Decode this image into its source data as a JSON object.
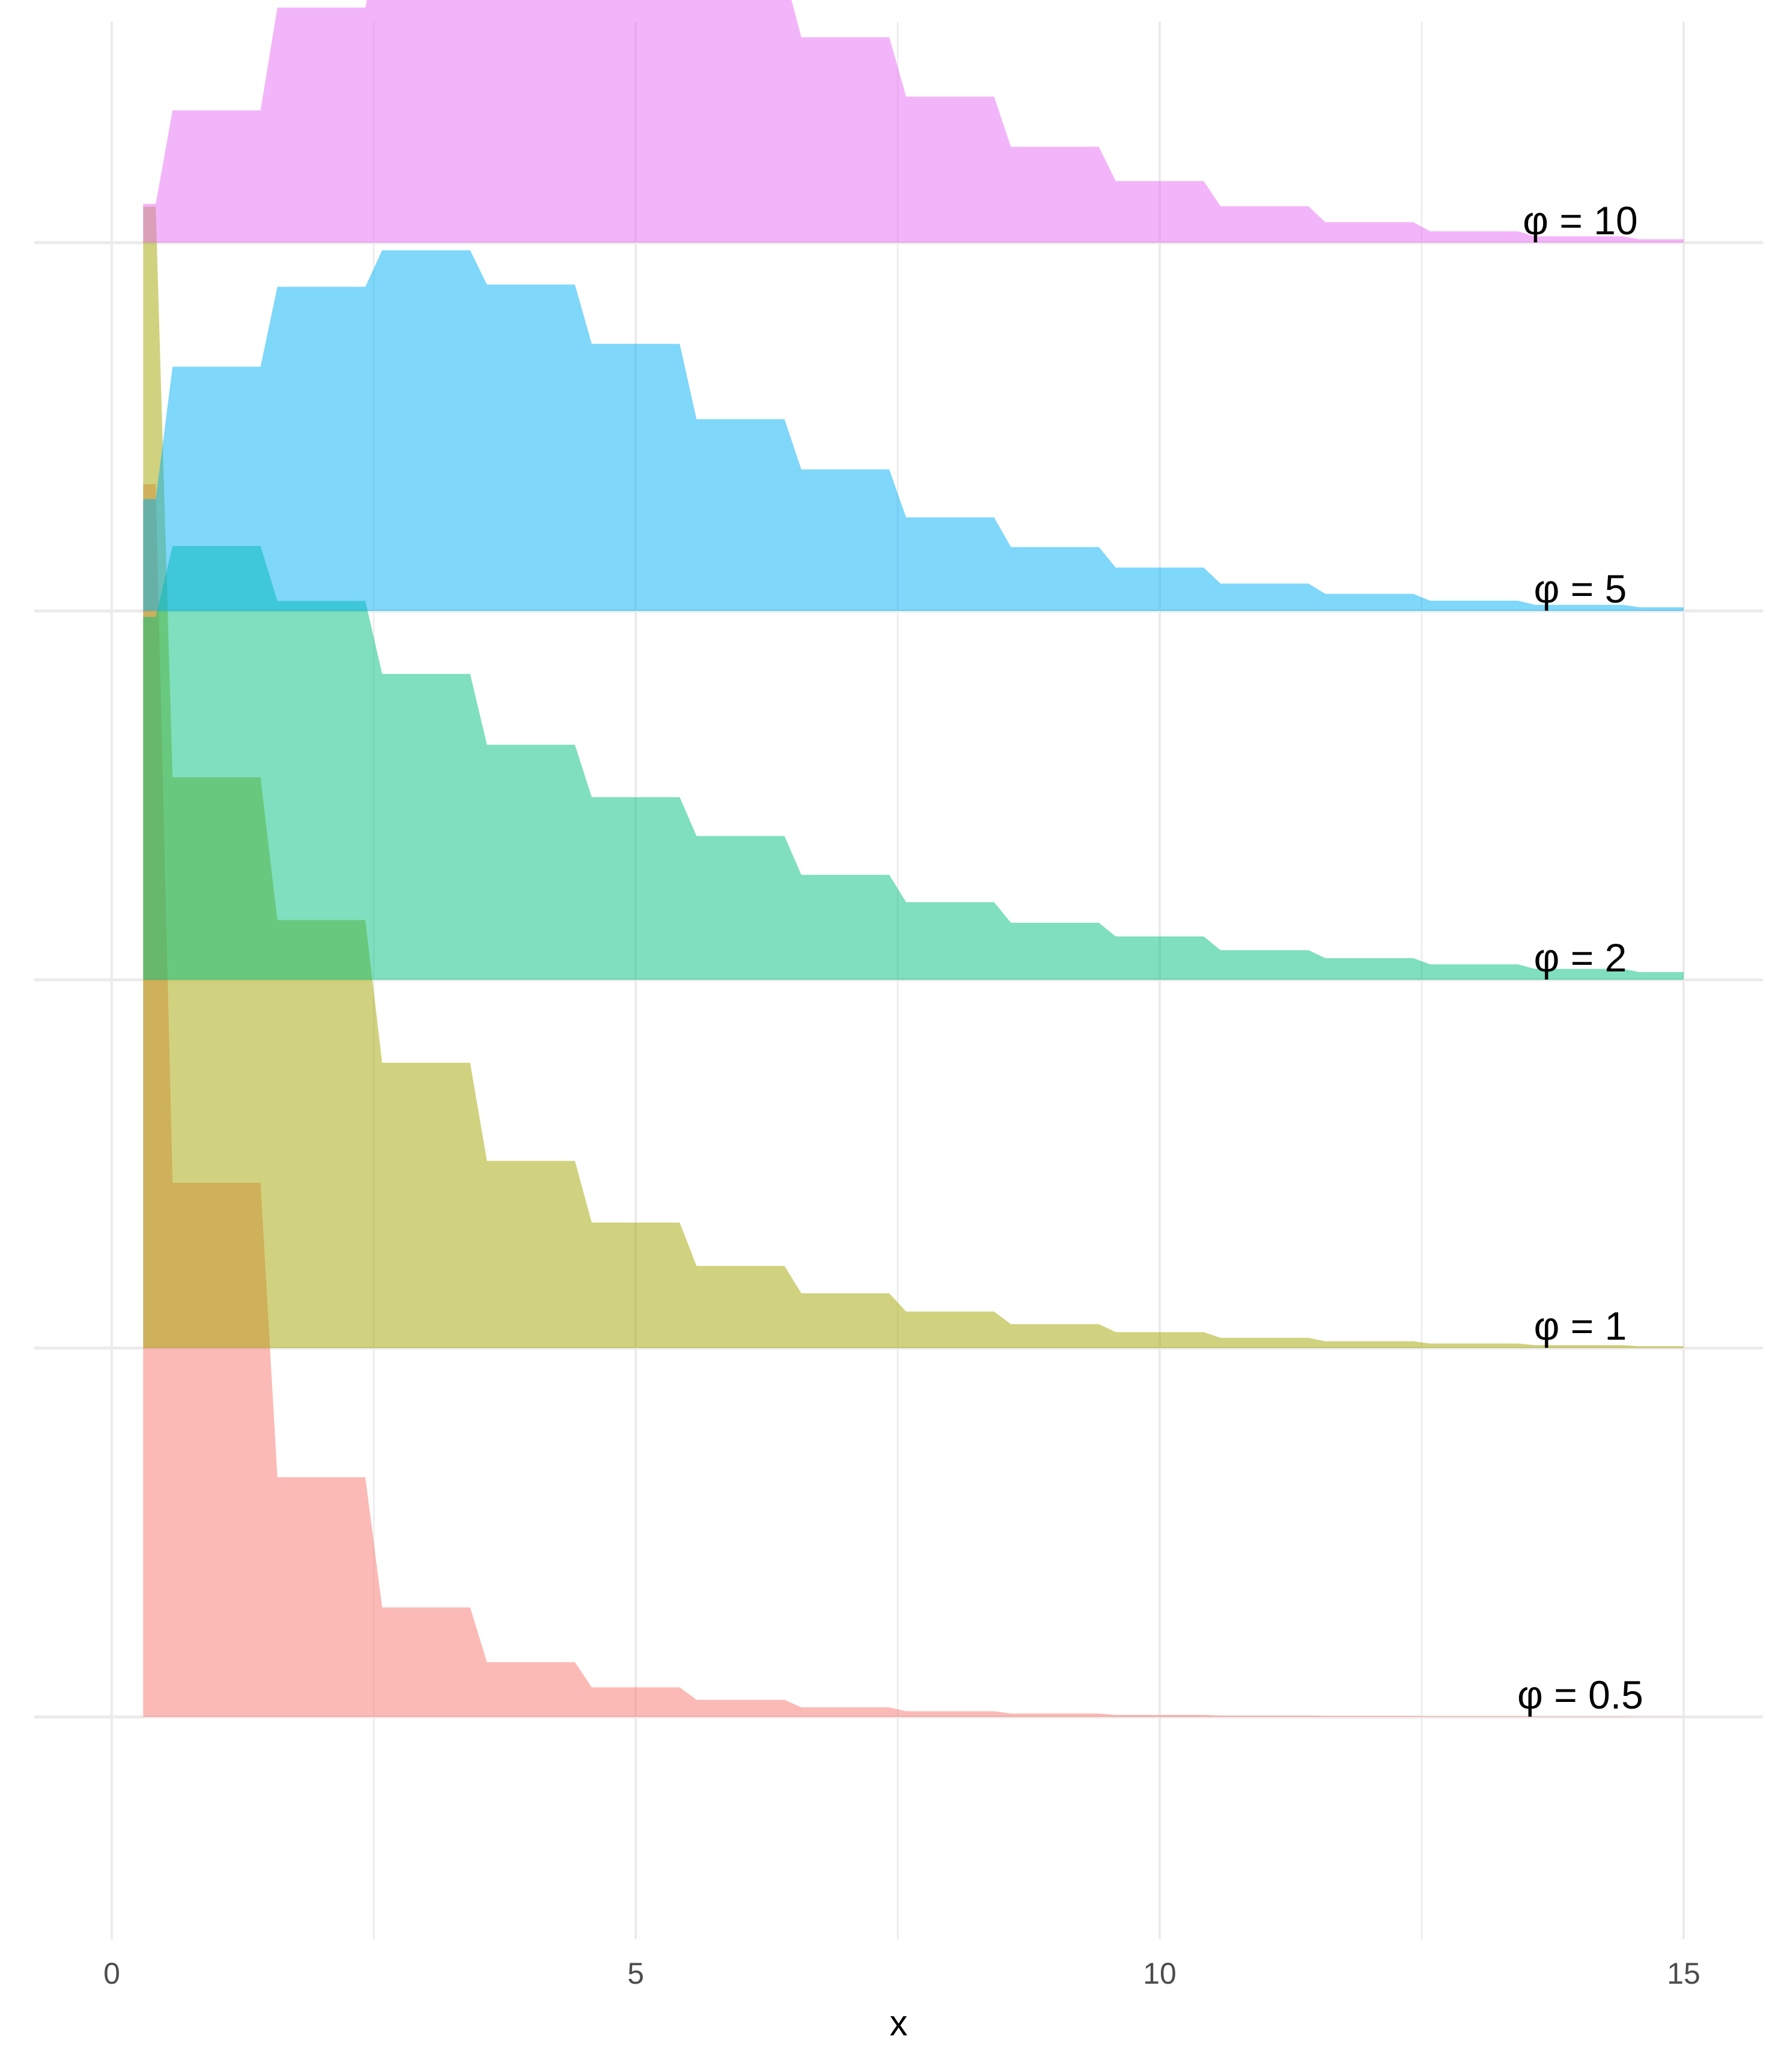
{
  "chart_data": {
    "type": "area",
    "subtype": "ridgeline-step",
    "title": "",
    "xlabel": "x",
    "ylabel": "",
    "xlim": [
      -0.3,
      15.6
    ],
    "xticks": [
      0,
      5,
      10,
      15
    ],
    "xtick_labels": [
      "0",
      "5",
      "10",
      "15"
    ],
    "grid": true,
    "legend": "none",
    "x": [
      0,
      1,
      2,
      3,
      4,
      5,
      6,
      7,
      8,
      9,
      10,
      11,
      12,
      13,
      14,
      15
    ],
    "series": [
      {
        "label": "φ = 0.5",
        "color": "#F8766D",
        "values": [
          0.54,
          0.234,
          0.105,
          0.048,
          0.024,
          0.013,
          0.0075,
          0.0042,
          0.0025,
          0.0015,
          0.0009,
          0.0006,
          0.0004,
          0.0003,
          0.0002,
          0.0001
        ]
      },
      {
        "label": "φ = 1",
        "color": "#A3A500",
        "values": [
          0.5,
          0.25,
          0.1875,
          0.125,
          0.082,
          0.055,
          0.036,
          0.024,
          0.016,
          0.0105,
          0.007,
          0.0045,
          0.003,
          0.002,
          0.0013,
          0.0008
        ]
      },
      {
        "label": "φ = 2",
        "color": "#00BF7D",
        "values": [
          0.159,
          0.19,
          0.166,
          0.134,
          0.103,
          0.08,
          0.063,
          0.046,
          0.034,
          0.025,
          0.019,
          0.013,
          0.0095,
          0.0068,
          0.0048,
          0.0034
        ]
      },
      {
        "label": "φ = 5",
        "color": "#00B0F6",
        "values": [
          0.049,
          0.107,
          0.142,
          0.158,
          0.143,
          0.117,
          0.084,
          0.062,
          0.041,
          0.028,
          0.019,
          0.012,
          0.0075,
          0.0045,
          0.0027,
          0.0016
        ]
      },
      {
        "label": "φ = 10",
        "color": "#E76BF3",
        "values": [
          0.017,
          0.058,
          0.103,
          0.138,
          0.151,
          0.141,
          0.118,
          0.09,
          0.064,
          0.042,
          0.027,
          0.016,
          0.009,
          0.005,
          0.0028,
          0.0015
        ]
      }
    ]
  }
}
